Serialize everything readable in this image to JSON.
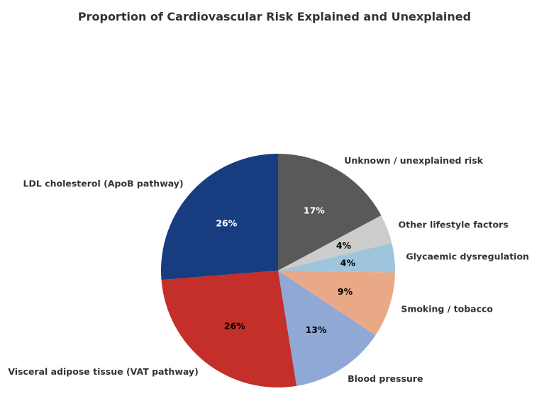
{
  "chart_data": {
    "type": "pie",
    "title": "Proportion of Cardiovascular Risk Explained and Unexplained",
    "start_angle_deg": 90,
    "direction": "clockwise",
    "slices": [
      {
        "label": "Unknown / unexplained risk",
        "value": 17,
        "pct_label": "17%",
        "color": "#595959",
        "pct_color": "#ffffff"
      },
      {
        "label": "Other lifestyle factors",
        "value": 4,
        "pct_label": "4%",
        "color": "#cccccc",
        "pct_color": "#000000"
      },
      {
        "label": "Glycaemic dysregulation",
        "value": 4,
        "pct_label": "4%",
        "color": "#9ec5dc",
        "pct_color": "#000000"
      },
      {
        "label": "Smoking / tobacco",
        "value": 9,
        "pct_label": "9%",
        "color": "#e9a987",
        "pct_color": "#000000"
      },
      {
        "label": "Blood pressure",
        "value": 13,
        "pct_label": "13%",
        "color": "#8fa8d6",
        "pct_color": "#000000"
      },
      {
        "label": "Visceral adipose tissue (VAT pathway)",
        "value": 26,
        "pct_label": "26%",
        "color": "#c42f29",
        "pct_color": "#000000"
      },
      {
        "label": "LDL cholesterol (ApoB pathway)",
        "value": 26,
        "pct_label": "26%",
        "color": "#173d80",
        "pct_color": "#ffffff"
      }
    ]
  }
}
